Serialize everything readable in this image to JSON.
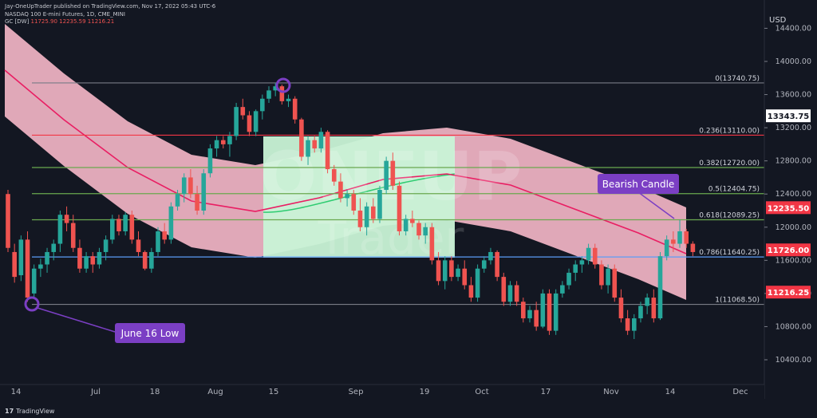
{
  "header": {
    "publish": "Jay-OneUpTrader published on TradingView.com, Nov 17, 2022 05:43 UTC-6",
    "symbol": "NASDAQ 100 E-mini Futures, 1D, CME_MINI",
    "gc_label": "GC [DW]",
    "gc_values": "11725.90  12235.59  11216.21"
  },
  "watermark": {
    "top": "ONEUP",
    "bottom": "Trader"
  },
  "footer": {
    "logo": "17",
    "brand": "TradingView"
  },
  "colors": {
    "background": "#131722",
    "up": "#26a69a",
    "down": "#ef5350",
    "band_fill": "#f7b8c9",
    "band_line": "#e91e63",
    "green_zone": "#c8f3d6",
    "green_line": "#2ecc71",
    "annotation": "#7b3fc4",
    "fib_gray": "#787b86",
    "fib_red": "#f23645",
    "fib_green": "#6aa84f",
    "fib_blue": "#5b9cf6"
  },
  "chart_data": {
    "type": "candlestick",
    "title": "NASDAQ 100 E-mini Futures, 1D, CME_MINI",
    "currency": "USD",
    "y_ticks": [
      "10400.00",
      "10800.00",
      "11200.00",
      "11600.00",
      "12000.00",
      "12400.00",
      "12800.00",
      "13200.00",
      "13600.00",
      "14000.00",
      "14400.00"
    ],
    "ylim": [
      10200,
      14550
    ],
    "x_ticks": [
      "14",
      "Jul",
      "18",
      "Aug",
      "15",
      "Sep",
      "19",
      "Oct",
      "17",
      "Nov",
      "14",
      "Dec"
    ],
    "fib_levels": [
      {
        "label": "0(13740.75)",
        "value": 13740.75,
        "color": "gray"
      },
      {
        "label": "0.236(13110.00)",
        "value": 13110.0,
        "color": "red"
      },
      {
        "label": "0.382(12720.00)",
        "value": 12720.0,
        "color": "green"
      },
      {
        "label": "0.5(12404.75)",
        "value": 12404.75,
        "color": "green"
      },
      {
        "label": "0.618(12089.25)",
        "value": 12089.25,
        "color": "green"
      },
      {
        "label": "0.786(11640.25)",
        "value": 11640.25,
        "color": "blue"
      },
      {
        "label": "1(11068.50)",
        "value": 11068.5,
        "color": "gray"
      }
    ],
    "price_labels": [
      {
        "text": "13343.75",
        "value": 13343.75,
        "style": "dark"
      },
      {
        "text": "12235.50",
        "value": 12235.5,
        "style": "red"
      },
      {
        "text": "11726.00",
        "value": 11726.0,
        "style": "red"
      },
      {
        "text": "11216.25",
        "value": 11216.25,
        "style": "red"
      }
    ],
    "annotations": [
      {
        "text": "June 16 Low"
      },
      {
        "text": "Bearish Candle"
      }
    ],
    "ohlc": [
      [
        12400,
        12450,
        11700,
        11750
      ],
      [
        11700,
        11800,
        11330,
        11400
      ],
      [
        11420,
        11900,
        11350,
        11850
      ],
      [
        11850,
        11950,
        11100,
        11150
      ],
      [
        11200,
        11550,
        11150,
        11500
      ],
      [
        11500,
        11620,
        11400,
        11550
      ],
      [
        11550,
        11750,
        11450,
        11700
      ],
      [
        11700,
        11850,
        11600,
        11800
      ],
      [
        11800,
        12200,
        11700,
        12150
      ],
      [
        12150,
        12250,
        11950,
        12050
      ],
      [
        12050,
        12150,
        11700,
        11750
      ],
      [
        11750,
        11850,
        11450,
        11500
      ],
      [
        11500,
        11700,
        11450,
        11650
      ],
      [
        11650,
        11700,
        11450,
        11550
      ],
      [
        11550,
        11750,
        11500,
        11700
      ],
      [
        11700,
        11900,
        11600,
        11850
      ],
      [
        11850,
        12150,
        11800,
        12100
      ],
      [
        12100,
        12150,
        11900,
        11950
      ],
      [
        11950,
        12180,
        11900,
        12150
      ],
      [
        12150,
        12200,
        11800,
        11850
      ],
      [
        11850,
        11950,
        11650,
        11700
      ],
      [
        11700,
        11720,
        11480,
        11500
      ],
      [
        11500,
        11750,
        11450,
        11700
      ],
      [
        11700,
        12000,
        11650,
        11950
      ],
      [
        11950,
        12050,
        11800,
        11850
      ],
      [
        11850,
        12300,
        11800,
        12250
      ],
      [
        12250,
        12450,
        12200,
        12400
      ],
      [
        12400,
        12650,
        12300,
        12600
      ],
      [
        12600,
        12700,
        12350,
        12400
      ],
      [
        12400,
        12500,
        12150,
        12200
      ],
      [
        12200,
        12700,
        12150,
        12650
      ],
      [
        12650,
        13000,
        12600,
        12950
      ],
      [
        12950,
        13100,
        12850,
        13050
      ],
      [
        13050,
        13100,
        12950,
        13000
      ],
      [
        13000,
        13150,
        12850,
        13100
      ],
      [
        13100,
        13500,
        13050,
        13450
      ],
      [
        13450,
        13550,
        13300,
        13350
      ],
      [
        13350,
        13400,
        13100,
        13150
      ],
      [
        13150,
        13420,
        13100,
        13400
      ],
      [
        13400,
        13600,
        13300,
        13550
      ],
      [
        13550,
        13700,
        13500,
        13650
      ],
      [
        13650,
        13740,
        13580,
        13700
      ],
      [
        13700,
        13720,
        13480,
        13520
      ],
      [
        13520,
        13600,
        13450,
        13550
      ],
      [
        13550,
        13580,
        13250,
        13300
      ],
      [
        13300,
        13320,
        12800,
        12850
      ],
      [
        12850,
        13100,
        12750,
        13050
      ],
      [
        13050,
        13100,
        12900,
        12950
      ],
      [
        12950,
        13200,
        12900,
        13150
      ],
      [
        13150,
        13170,
        12650,
        12700
      ],
      [
        12700,
        12750,
        12500,
        12550
      ],
      [
        12550,
        12650,
        12300,
        12350
      ],
      [
        12350,
        12450,
        12250,
        12400
      ],
      [
        12400,
        12450,
        12150,
        12200
      ],
      [
        12200,
        12350,
        11950,
        12000
      ],
      [
        12000,
        12300,
        11900,
        12250
      ],
      [
        12250,
        12350,
        12050,
        12100
      ],
      [
        12100,
        12500,
        12050,
        12450
      ],
      [
        12450,
        12850,
        12400,
        12800
      ],
      [
        12800,
        12900,
        12450,
        12500
      ],
      [
        12500,
        12550,
        11900,
        11950
      ],
      [
        11950,
        12150,
        11900,
        12100
      ],
      [
        12100,
        12200,
        12000,
        12050
      ],
      [
        12050,
        12080,
        11850,
        11900
      ],
      [
        11900,
        12050,
        11800,
        12000
      ],
      [
        12000,
        12050,
        11550,
        11600
      ],
      [
        11600,
        11700,
        11300,
        11350
      ],
      [
        11350,
        11650,
        11250,
        11600
      ],
      [
        11600,
        11650,
        11350,
        11400
      ],
      [
        11400,
        11550,
        11350,
        11500
      ],
      [
        11500,
        11600,
        11250,
        11300
      ],
      [
        11300,
        11400,
        11100,
        11150
      ],
      [
        11150,
        11550,
        11100,
        11500
      ],
      [
        11500,
        11650,
        11450,
        11600
      ],
      [
        11600,
        11750,
        11550,
        11700
      ],
      [
        11700,
        11720,
        11350,
        11400
      ],
      [
        11400,
        11450,
        11050,
        11100
      ],
      [
        11100,
        11350,
        11050,
        11300
      ],
      [
        11300,
        11350,
        11050,
        11100
      ],
      [
        11100,
        11150,
        10850,
        10900
      ],
      [
        10900,
        11050,
        10850,
        11000
      ],
      [
        11000,
        11100,
        10750,
        10800
      ],
      [
        10800,
        11250,
        10780,
        11200
      ],
      [
        11200,
        11250,
        10700,
        10750
      ],
      [
        10750,
        11250,
        10700,
        11200
      ],
      [
        11200,
        11350,
        11150,
        11300
      ],
      [
        11300,
        11500,
        11250,
        11450
      ],
      [
        11450,
        11600,
        11350,
        11550
      ],
      [
        11550,
        11650,
        11450,
        11600
      ],
      [
        11600,
        11800,
        11550,
        11750
      ],
      [
        11750,
        11800,
        11500,
        11550
      ],
      [
        11550,
        11600,
        11250,
        11300
      ],
      [
        11300,
        11550,
        11200,
        11500
      ],
      [
        11500,
        11550,
        11100,
        11150
      ],
      [
        11150,
        11250,
        10850,
        10900
      ],
      [
        10900,
        11000,
        10700,
        10750
      ],
      [
        10750,
        10950,
        10650,
        10900
      ],
      [
        10900,
        11100,
        10850,
        11050
      ],
      [
        11050,
        11200,
        10950,
        11150
      ],
      [
        11150,
        11250,
        10850,
        10900
      ],
      [
        10900,
        11700,
        10880,
        11650
      ],
      [
        11650,
        11900,
        11600,
        11850
      ],
      [
        11850,
        11950,
        11700,
        11800
      ],
      [
        11800,
        12089,
        11750,
        11950
      ],
      [
        11950,
        11980,
        11750,
        11800
      ],
      [
        11800,
        11830,
        11650,
        11700
      ]
    ]
  }
}
